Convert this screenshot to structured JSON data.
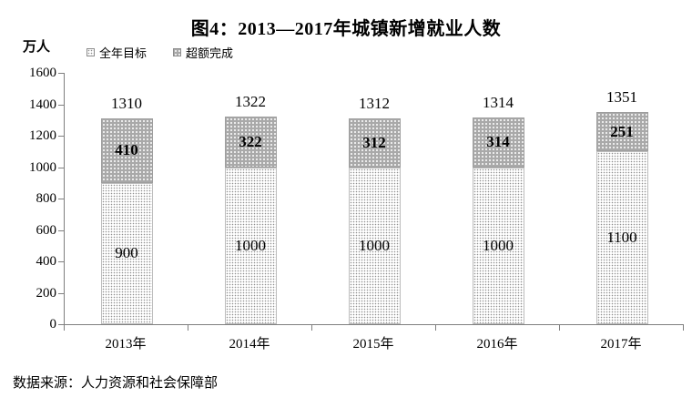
{
  "title": "图4：2013—2017年城镇新增就业人数",
  "y_axis_unit": "万人",
  "source_note": "数据来源：人力资源和社会保障部",
  "legend": {
    "target_label": "全年目标",
    "exceed_label": "超额完成"
  },
  "chart_data": {
    "type": "bar",
    "stacked": true,
    "title": "图4：2013—2017年城镇新增就业人数",
    "ylabel": "万人",
    "xlabel": "",
    "categories": [
      "2013年",
      "2014年",
      "2015年",
      "2016年",
      "2017年"
    ],
    "series": [
      {
        "name": "全年目标",
        "values": [
          900,
          1000,
          1000,
          1000,
          1100
        ]
      },
      {
        "name": "超额完成",
        "values": [
          410,
          322,
          312,
          314,
          251
        ]
      }
    ],
    "totals": [
      1310,
      1322,
      1312,
      1314,
      1351
    ],
    "ylim": [
      0,
      1600
    ],
    "yticks": [
      0,
      200,
      400,
      600,
      800,
      1000,
      1200,
      1400,
      1600
    ],
    "grid": false,
    "legend_position": "top-left",
    "colors": {
      "target_fill": "#ffffff",
      "target_dot": "#8f8f8f",
      "exceed_fill": "#a9a9a9",
      "exceed_dot": "#ffffff",
      "axis": "#7f7f7f",
      "text": "#000000"
    }
  }
}
